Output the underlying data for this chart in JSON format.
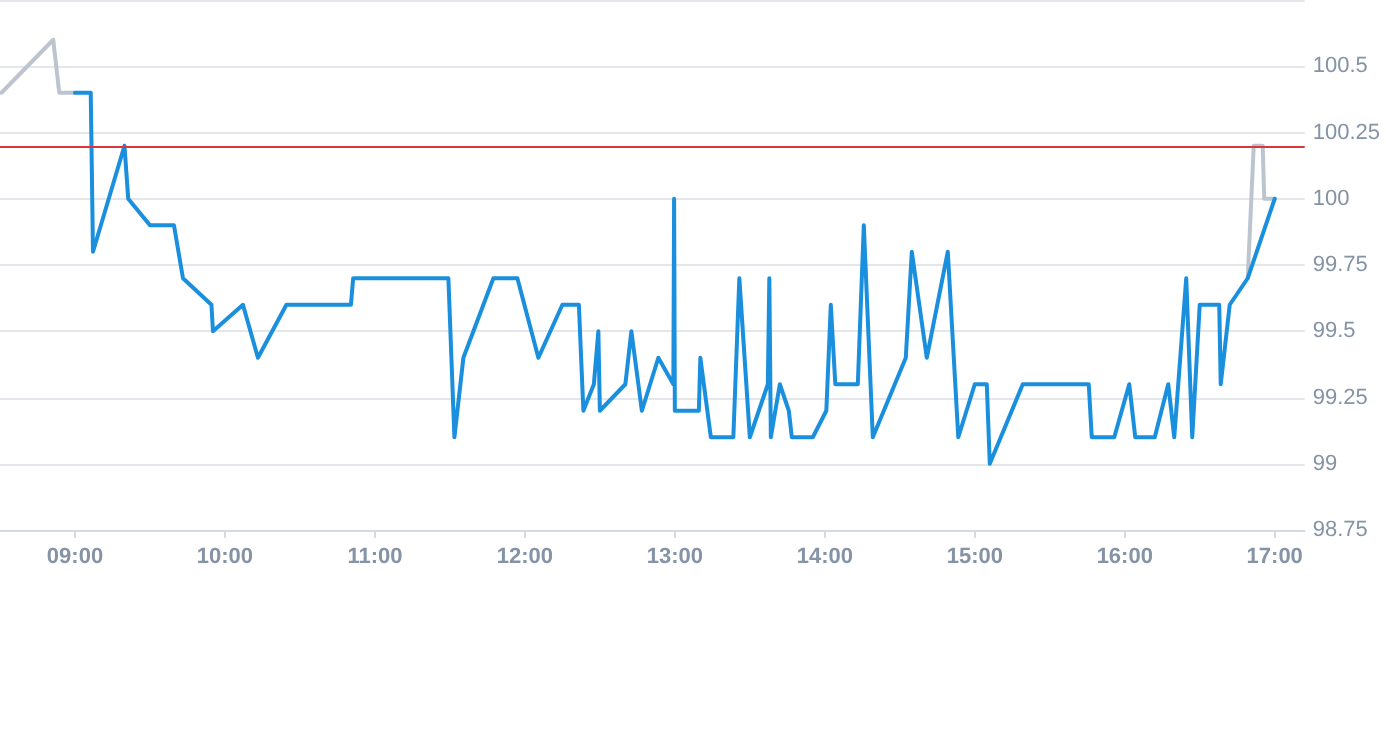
{
  "chart_data": {
    "type": "line",
    "xlim": [
      8.5,
      17.2
    ],
    "ylim": [
      98.75,
      100.75
    ],
    "xticks": [
      {
        "value": 9,
        "label": "09:00"
      },
      {
        "value": 10,
        "label": "10:00"
      },
      {
        "value": 11,
        "label": "11:00"
      },
      {
        "value": 12,
        "label": "12:00"
      },
      {
        "value": 13,
        "label": "13:00"
      },
      {
        "value": 14,
        "label": "14:00"
      },
      {
        "value": 15,
        "label": "15:00"
      },
      {
        "value": 16,
        "label": "16:00"
      },
      {
        "value": 17,
        "label": "17:00"
      }
    ],
    "yticks": [
      98.75,
      99,
      99.25,
      99.5,
      99.75,
      100,
      100.25,
      100.5,
      {
        "value": 100.75,
        "label": null
      }
    ],
    "grid": "y",
    "marker": "none",
    "line_style": "solid",
    "ref_lines": [
      {
        "axis": "y",
        "value": 100.2,
        "color": "#d9363e"
      }
    ],
    "series": [
      {
        "color": "#bcc5cf",
        "x": [
          8.51,
          8.855,
          8.895,
          9.0
        ],
        "values": [
          100.4,
          100.6,
          100.4,
          100.4
        ]
      },
      {
        "color": "#bcc5cf",
        "x": [
          16.82,
          16.86,
          16.92,
          16.93,
          17.0
        ],
        "values": [
          99.7,
          100.2,
          100.2,
          100.0,
          100.0
        ]
      },
      {
        "color": "#1a8fdd",
        "x": [
          9.0,
          9.105,
          9.12,
          9.33,
          9.355,
          9.5,
          9.66,
          9.72,
          9.91,
          9.92,
          10.12,
          10.22,
          10.41,
          10.84,
          10.855,
          11.49,
          11.53,
          11.59,
          11.79,
          11.95,
          12.09,
          12.25,
          12.36,
          12.39,
          12.46,
          12.49,
          12.5,
          12.67,
          12.71,
          12.78,
          12.89,
          12.99,
          12.995,
          13.0,
          13.16,
          13.17,
          13.24,
          13.39,
          13.43,
          13.5,
          13.62,
          13.63,
          13.64,
          13.7,
          13.76,
          13.78,
          13.92,
          14.01,
          14.04,
          14.07,
          14.22,
          14.26,
          14.32,
          14.54,
          14.58,
          14.68,
          14.82,
          14.89,
          15.0,
          15.08,
          15.1,
          15.32,
          15.76,
          15.78,
          15.93,
          16.03,
          16.07,
          16.2,
          16.29,
          16.33,
          16.41,
          16.45,
          16.5,
          16.63,
          16.64,
          16.7,
          16.82,
          17.0
        ],
        "values": [
          100.4,
          100.4,
          99.8,
          100.2,
          100.0,
          99.9,
          99.9,
          99.7,
          99.6,
          99.5,
          99.6,
          99.4,
          99.6,
          99.6,
          99.7,
          99.7,
          99.1,
          99.4,
          99.7,
          99.7,
          99.4,
          99.6,
          99.6,
          99.2,
          99.3,
          99.5,
          99.2,
          99.3,
          99.5,
          99.2,
          99.4,
          99.3,
          100.0,
          99.2,
          99.2,
          99.4,
          99.1,
          99.1,
          99.7,
          99.1,
          99.3,
          99.7,
          99.1,
          99.3,
          99.2,
          99.1,
          99.1,
          99.2,
          99.6,
          99.3,
          99.3,
          99.9,
          99.1,
          99.4,
          99.8,
          99.4,
          99.8,
          99.1,
          99.3,
          99.3,
          99.0,
          99.3,
          99.3,
          99.1,
          99.1,
          99.3,
          99.1,
          99.1,
          99.3,
          99.1,
          99.7,
          99.1,
          99.6,
          99.6,
          99.3,
          99.6,
          99.7,
          100.0
        ]
      }
    ]
  }
}
